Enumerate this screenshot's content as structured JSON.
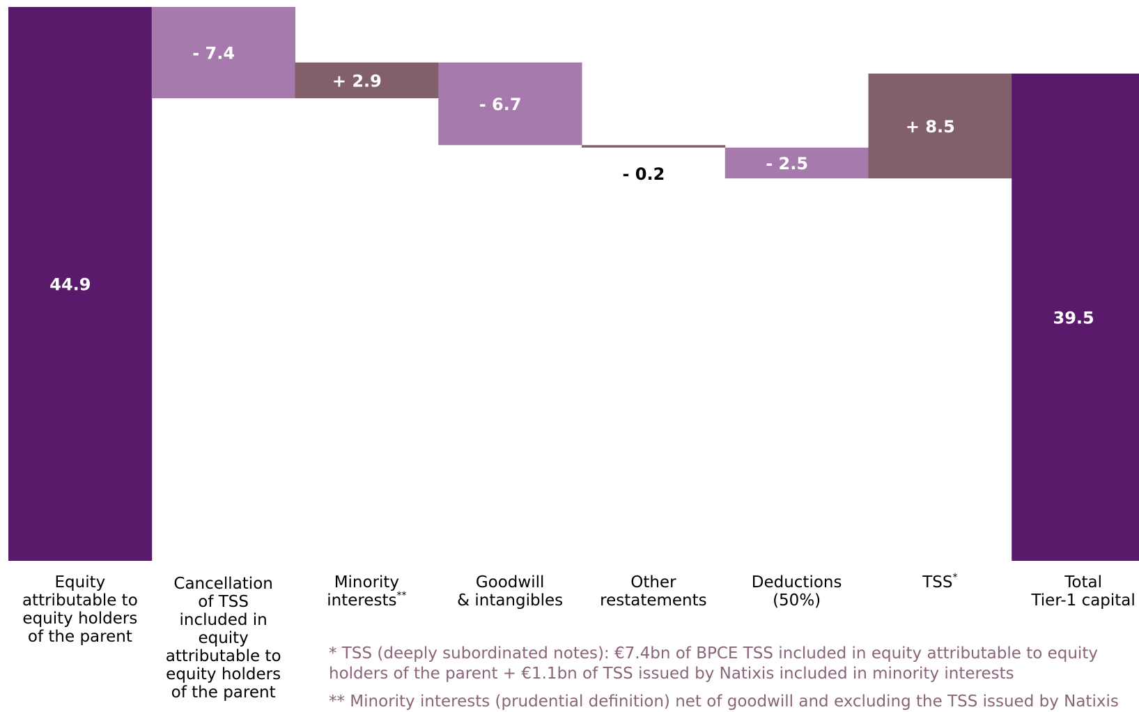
{
  "chart_data": {
    "type": "bar",
    "subtype": "waterfall",
    "title": "",
    "xlabel": "",
    "ylabel": "",
    "ylim": [
      0,
      44.9
    ],
    "grid": false,
    "legend": "none",
    "steps": [
      {
        "category": "Equity\nattributable to\nequity holders\nof the parent",
        "superscript": "",
        "kind": "total",
        "value": 44.9,
        "label": "44.9"
      },
      {
        "category": "Cancellation\nof TSS\nincluded in\nequity\nattributable to\nequity holders\nof the parent",
        "superscript": "",
        "kind": "decrease",
        "value": -7.4,
        "label": "- 7.4"
      },
      {
        "category": "Minority\ninterests",
        "superscript": "**",
        "kind": "increase",
        "value": 2.9,
        "label": "+ 2.9"
      },
      {
        "category": "Goodwill\n& intangibles",
        "superscript": "",
        "kind": "decrease",
        "value": -6.7,
        "label": "- 6.7"
      },
      {
        "category": "Other\nrestatements",
        "superscript": "",
        "kind": "increase",
        "value": -0.2,
        "label": "- 0.2"
      },
      {
        "category": "Deductions\n(50%)",
        "superscript": "",
        "kind": "decrease",
        "value": -2.5,
        "label": "- 2.5"
      },
      {
        "category": "TSS",
        "superscript": "*",
        "kind": "increase",
        "value": 8.5,
        "label": "+ 8.5"
      },
      {
        "category": "Total\nTier-1 capital",
        "superscript": "",
        "kind": "total",
        "value": 39.5,
        "label": "39.5"
      }
    ],
    "colors": {
      "total": "#5a1a6b",
      "decrease": "#a67aad",
      "increase": "#826069",
      "label_light": "#ffffff",
      "label_dark": "#000000"
    }
  },
  "footnotes": [
    "* TSS (deeply subordinated notes): €7.4bn of BPCE TSS included in equity attributable to equity\nholders of the parent + €1.1bn of TSS issued by Natixis included in minority interests",
    "** Minority interests (prudential definition) net of goodwill and excluding the TSS issued by Natixis"
  ]
}
